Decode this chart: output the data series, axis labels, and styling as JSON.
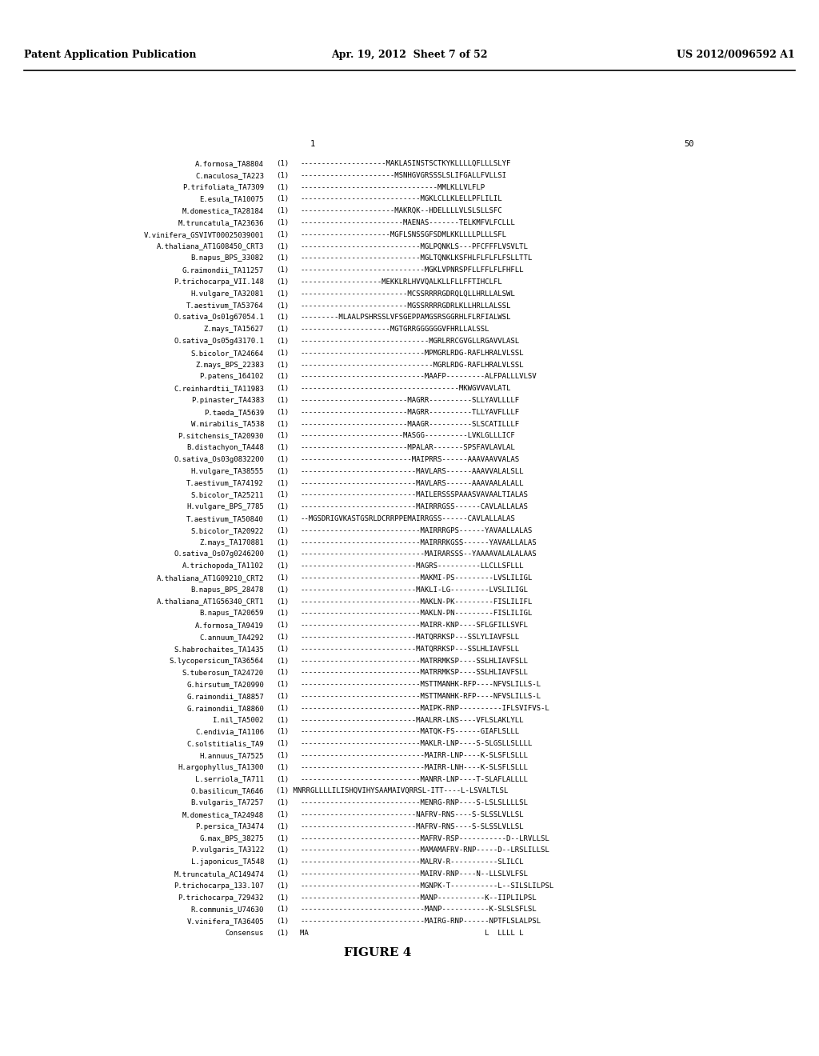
{
  "header_left": "Patent Application Publication",
  "header_center": "Apr. 19, 2012  Sheet 7 of 52",
  "header_right": "US 2012/0096592 A1",
  "figure_label": "FIGURE 4",
  "sequences": [
    [
      "A.formosa_TA8804",
      "(1)",
      "--------------------MAKLASINSTSCTKYKLLLLQFLLLSLYF"
    ],
    [
      "C.maculosa_TA223",
      "(1)",
      "----------------------MSNHGVGRSSSLSLIFGALLFVLLSI"
    ],
    [
      "P.trifoliata_TA7309",
      "(1)",
      "--------------------------------MMLKLLVLFLP"
    ],
    [
      "E.esula_TA10075",
      "(1)",
      "----------------------------MGKLCLLKLELLPFLILIL"
    ],
    [
      "M.domestica_TA28184",
      "(1)",
      "----------------------MAKRQK--HDELLLLVLSLSLLSFC"
    ],
    [
      "M.truncatula_TA23636",
      "(1)",
      "------------------------MAENAS-------TELKMFVLFCLLL"
    ],
    [
      "V.vinifera_GSVIVT00025039001",
      "(1)",
      "---------------------MGFLSNSSGFSDMLKKLLLLPLLLSFL"
    ],
    [
      "A.thaliana_AT1G08450_CRT3",
      "(1)",
      "----------------------------MGLPQNKLS---PFCFFFLVSVLTL"
    ],
    [
      "B.napus_BPS_33082",
      "(1)",
      "----------------------------MGLTQNKLKSFHLFLFLFLFSLLTTL"
    ],
    [
      "G.raimondii_TA11257",
      "(1)",
      "-----------------------------MGKLVPNRSPFLLFFLFLFHFLL"
    ],
    [
      "P.trichocarpa_VII.148",
      "(1)",
      "-------------------MEKKLRLHVVQALKLLFLLFFTIHCLFL"
    ],
    [
      "H.vulgare_TA32081",
      "(1)",
      "-------------------------MCSSRRRRGDRQLQLLHRLLALSWL"
    ],
    [
      "T.aestivum_TA53764",
      "(1)",
      "-------------------------MGSSRRRRGDRLKLLHRLLALSSL"
    ],
    [
      "O.sativa_Os01g67054.1",
      "(1)",
      "---------MLAALPSHRSSLVFSGEPPAMGSRSGGRHLFLRFIALWSL"
    ],
    [
      "Z.mays_TA15627",
      "(1)",
      "---------------------MGTGRRGGGGGGVFHRLLALSSL"
    ],
    [
      "O.sativa_Os05g43170.1",
      "(1)",
      "------------------------------MGRLRRCGVGLLRGAVVLASL"
    ],
    [
      "S.bicolor_TA24664",
      "(1)",
      "-----------------------------MPMGRLRDG-RAFLHRALVLSSL"
    ],
    [
      "Z.mays_BPS_22383",
      "(1)",
      "-------------------------------MGRLRDG-RAFLHRALVLSSL"
    ],
    [
      "P.patens_164102",
      "(1)",
      "-----------------------------MAAFP---------ALFPALLLVLSV"
    ],
    [
      "C.reinhardtii_TA11983",
      "(1)",
      "-------------------------------------MKWGVVAVLATL"
    ],
    [
      "P.pinaster_TA4383",
      "(1)",
      "-------------------------MAGRR----------SLLYAVLLLLF"
    ],
    [
      "P.taeda_TA5639",
      "(1)",
      "-------------------------MAGRR----------TLLYAVFLLLF"
    ],
    [
      "W.mirabilis_TA538",
      "(1)",
      "-------------------------MAAGR----------SLSCATILLLF"
    ],
    [
      "P.sitchensis_TA20930",
      "(1)",
      "------------------------MASGG----------LVKLGLLLICF"
    ],
    [
      "B.distachyon_TA448",
      "(1)",
      "-------------------------MPALAR-------SPSFAVLAVLAL"
    ],
    [
      "O.sativa_Os03g0832200",
      "(1)",
      "--------------------------MAIPRRS------AAAVAAVVALAS"
    ],
    [
      "H.vulgare_TA38555",
      "(1)",
      "---------------------------MAVLARS------AAAVVALALSLL"
    ],
    [
      "T.aestivum_TA74192",
      "(1)",
      "---------------------------MAVLARS------AAAVAALALALL"
    ],
    [
      "S.bicolor_TA25211",
      "(1)",
      "---------------------------MAILERSSSPAAASVAVAALTIALAS"
    ],
    [
      "H.vulgare_BPS_7785",
      "(1)",
      "---------------------------MAIRRRGSS------CAVLALLALAS"
    ],
    [
      "T.aestivum_TA50840",
      "(1)",
      "--MGSDRIGVKASTGSRLDCRRPPEMAIRRGSS------CAVLALLALAS"
    ],
    [
      "S.bicolor_TA20922",
      "(1)",
      "----------------------------MAIRRRGPS------YAVAALLALAS"
    ],
    [
      "Z.mays_TA170881",
      "(1)",
      "----------------------------MAIRRRKGSS------YAVAALLALAS"
    ],
    [
      "O.sativa_Os07g0246200",
      "(1)",
      "-----------------------------MAIRARSSS--YAAAAVALALALAAS"
    ],
    [
      "A.trichopoda_TA1102",
      "(1)",
      "---------------------------MAGRS----------LLCLLSFLLL"
    ],
    [
      "A.thaliana_AT1G09210_CRT2",
      "(1)",
      "----------------------------MAKMI-PS---------LVSLILIGL"
    ],
    [
      "B.napus_BPS_28478",
      "(1)",
      "---------------------------MAKLI-LG---------LVSLILIGL"
    ],
    [
      "A.thaliana_AT1G56340_CRT1",
      "(1)",
      "----------------------------MAKLN-PK---------FISLILIFL"
    ],
    [
      "B.napus_TA20659",
      "(1)",
      "----------------------------MAKLN-PN---------FISLILIGL"
    ],
    [
      "A.formosa_TA9419",
      "(1)",
      "----------------------------MAIRR-KNP----SFLGFILLSVFL"
    ],
    [
      "C.annuum_TA4292",
      "(1)",
      "---------------------------MATQRRKSP---SSLYLIAVFSLL"
    ],
    [
      "S.habrochaites_TA1435",
      "(1)",
      "---------------------------MATQRRKSP---SSLHLIAVFSLL"
    ],
    [
      "S.lycopersicum_TA36564",
      "(1)",
      "----------------------------MATRRMKSP----SSLHLIAVFSLL"
    ],
    [
      "S.tuberosum_TA24720",
      "(1)",
      "----------------------------MATRRMKSP----SSLHLIAVFSLL"
    ],
    [
      "G.hirsutum_TA20990",
      "(1)",
      "----------------------------MSTTMANHK-RFP----NFVSLILLS-L"
    ],
    [
      "G.raimondii_TA8857",
      "(1)",
      "----------------------------MSTTMANHK-RFP----NFVSLILLS-L"
    ],
    [
      "G.raimondii_TA8860",
      "(1)",
      "----------------------------MAIPK-RNP----------IFLSVIFVS-L"
    ],
    [
      "I.nil_TA5002",
      "(1)",
      "---------------------------MAALRR-LNS----VFLSLAKLYLL"
    ],
    [
      "C.endivia_TA1106",
      "(1)",
      "----------------------------MATQK-FS------GIAFLSLLL"
    ],
    [
      "C.solstitialis_TA9",
      "(1)",
      "----------------------------MAKLR-LNP----S-SLGSLLSLLLL"
    ],
    [
      "H.annuus_TA7525",
      "(1)",
      "-----------------------------MAIRR-LNP----K-SLSFLSLLL"
    ],
    [
      "H.argophyllus_TA1300",
      "(1)",
      "-----------------------------MAIRR-LNH----K-SLSFLSLLL"
    ],
    [
      "L.serriola_TA711",
      "(1)",
      "----------------------------MANRR-LNP----T-SLAFLALLLL"
    ],
    [
      "O.basilicum_TA646",
      "(1) MNRRGLLLLILISHQVIHYSAAMAIVQRRSL-ITT----L-LSVALTLSL",
      ""
    ],
    [
      "B.vulgaris_TA7257",
      "(1)",
      "----------------------------MENRG-RNP----S-LSLSLLLLSL"
    ],
    [
      "M.domestica_TA24948",
      "(1)",
      "---------------------------NAFRV-RNS----S-SLSSLVLLSL"
    ],
    [
      "P.persica_TA3474",
      "(1)",
      "---------------------------MAFRV-RNS----S-SLSSLVLLSL"
    ],
    [
      "G.max_BPS_38275",
      "(1)",
      "----------------------------MAFRV-RSP-----------D--LRVLLSL"
    ],
    [
      "P.vulgaris_TA3122",
      "(1)",
      "----------------------------MAMAMAFRV-RNP-----D--LRSLILLSL"
    ],
    [
      "L.japonicus_TA548",
      "(1)",
      "----------------------------MALRV-R-----------SLILCL"
    ],
    [
      "M.truncatula_AC149474",
      "(1)",
      "----------------------------MAIRV-RNP----N--LLSLVLFSL"
    ],
    [
      "P.trichocarpa_133.107",
      "(1)",
      "----------------------------MGNPK-T-----------L--SILSLILPSL"
    ],
    [
      "P.trichocarpa_729432",
      "(1)",
      "----------------------------MANP-----------K--IIPLILPSL"
    ],
    [
      "R.communis_U74630",
      "(1)",
      "-----------------------------MANP-----------K-SLSLSFLSL"
    ],
    [
      "V.vinifera_TA36405",
      "(1)",
      "-----------------------------MAIRG-RNP------NPTFLSLALPSL"
    ],
    [
      "Consensus",
      "(1)",
      "MA                                         L  LLLL L"
    ]
  ]
}
